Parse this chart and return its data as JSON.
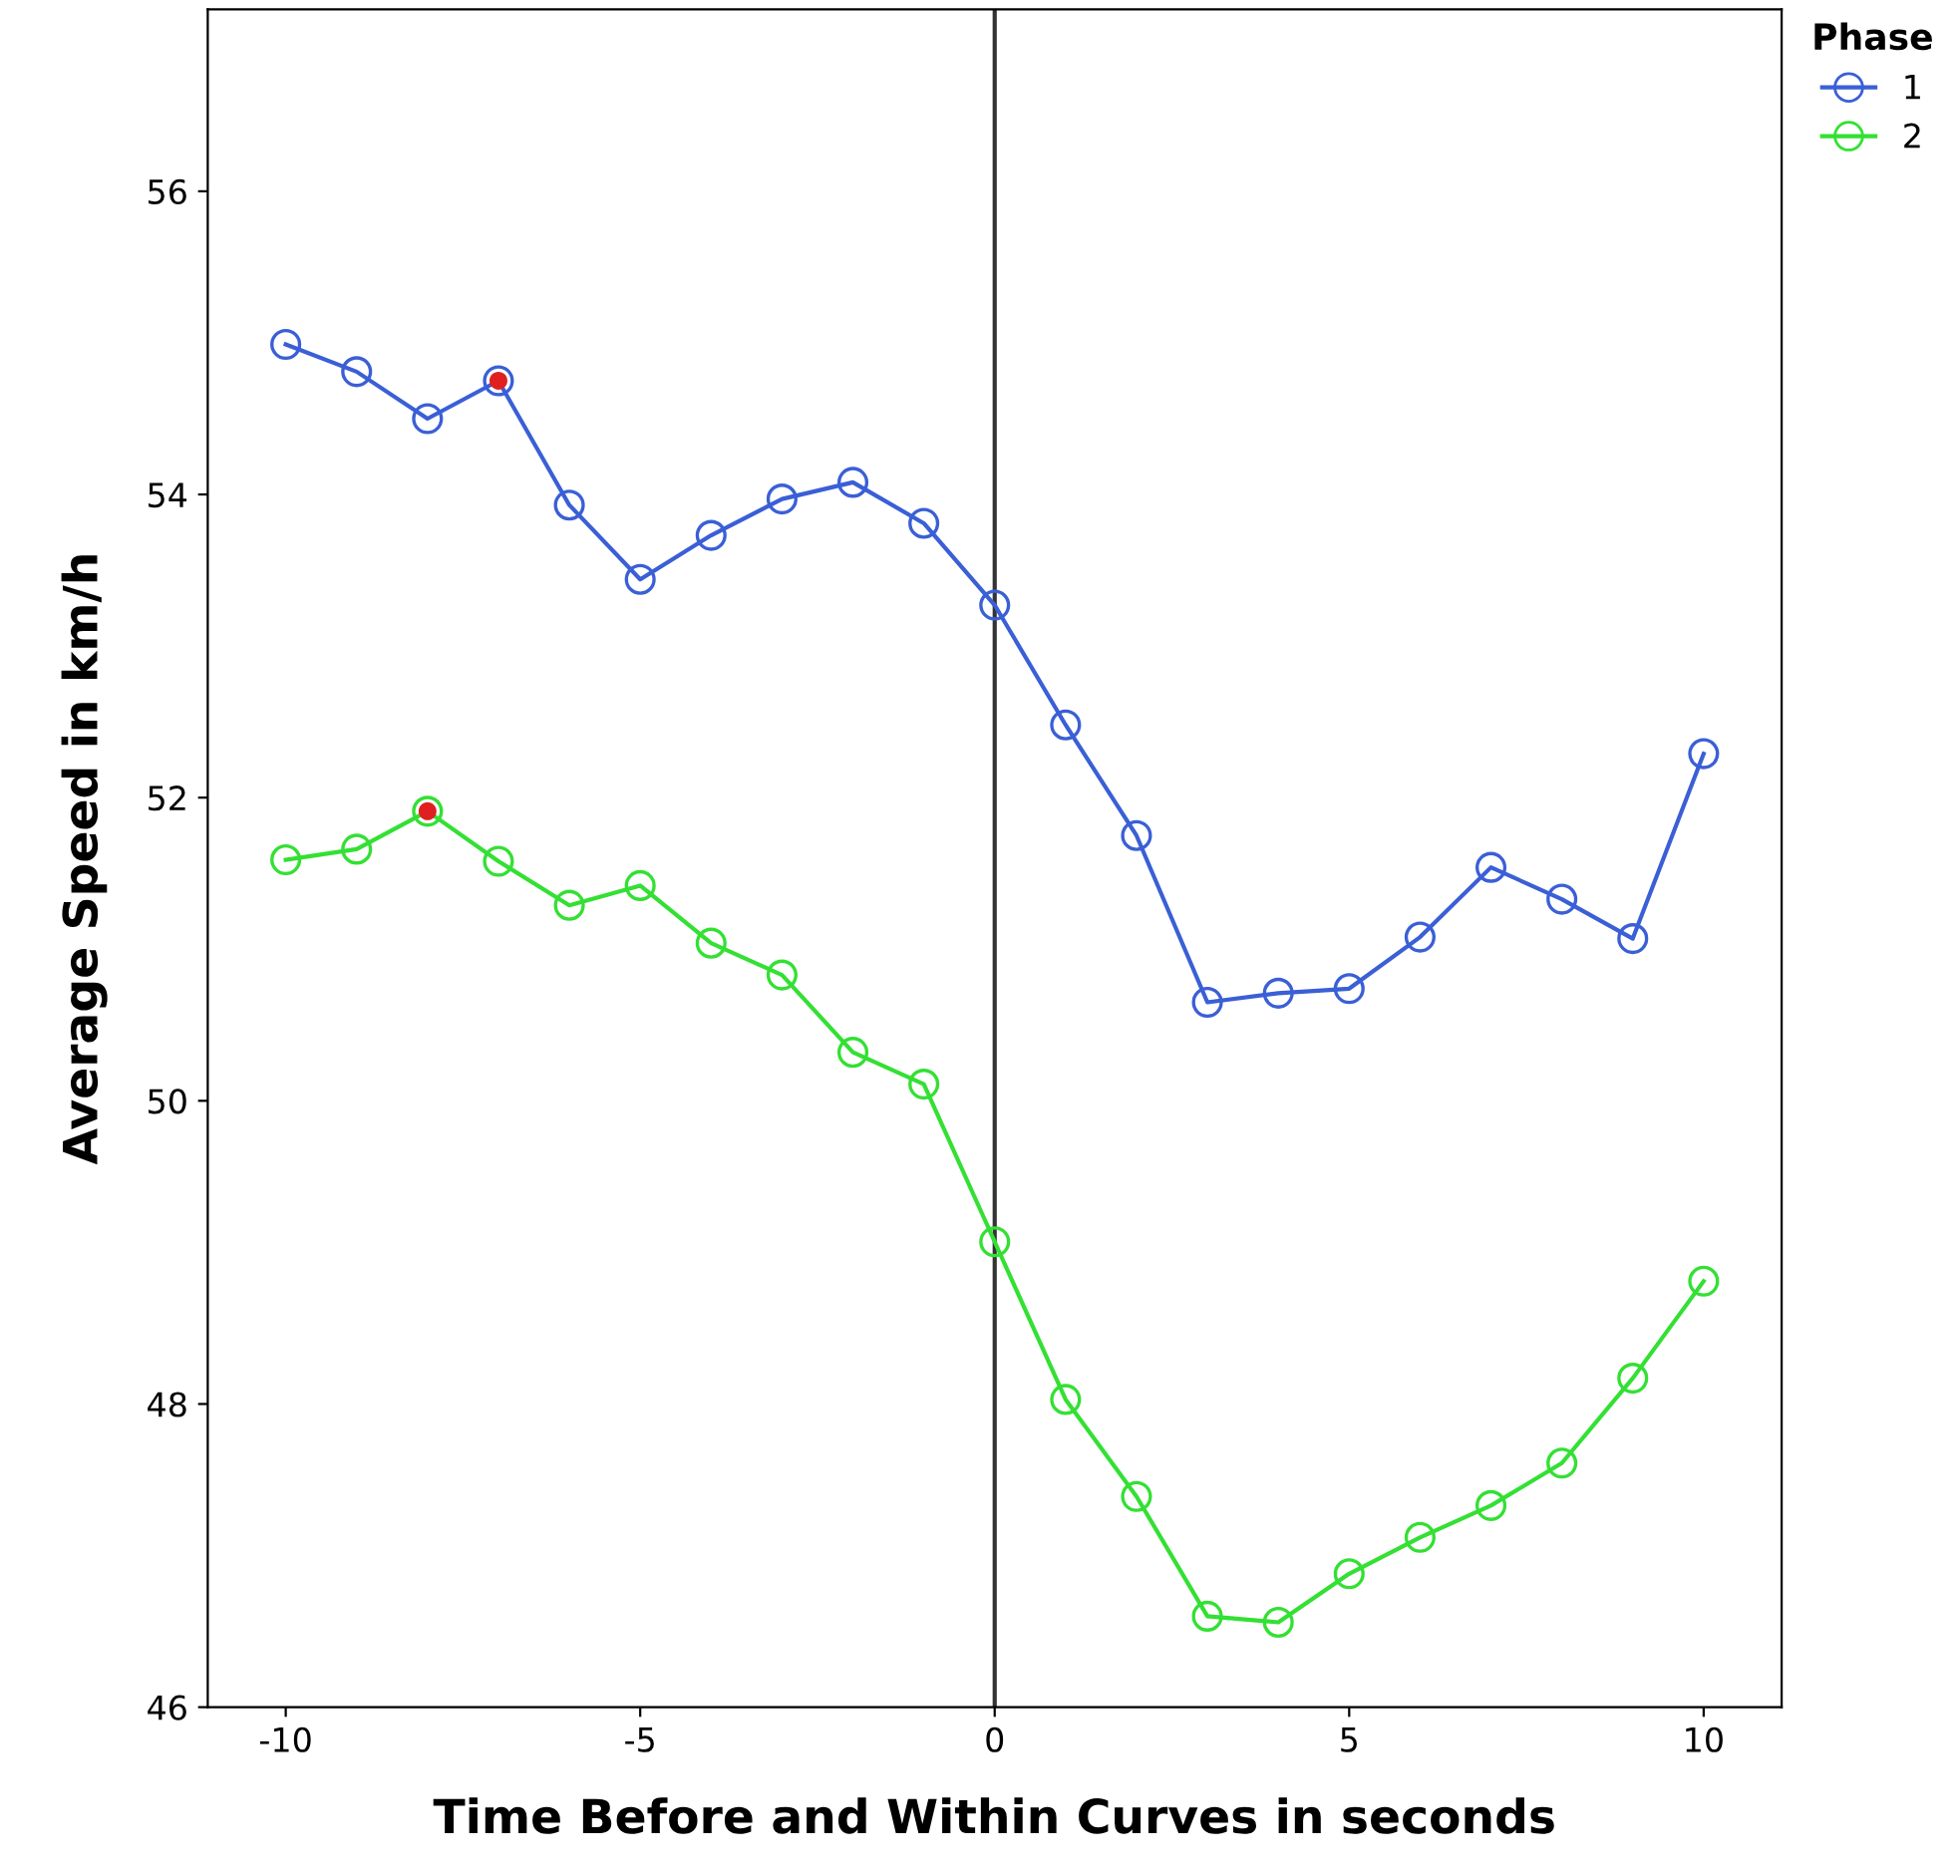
{
  "chart_data": {
    "type": "line",
    "xlabel": "Time Before and Within Curves in seconds",
    "ylabel": "Average Speed in km/h",
    "legend_title": "Phase",
    "legend": "top right",
    "marker": "circle",
    "line_style": "solid",
    "grid": false,
    "x": [
      -10,
      -9,
      -8,
      -7,
      -6,
      -5,
      -4,
      -3,
      -2,
      -1,
      0,
      1,
      2,
      3,
      4,
      5,
      6,
      7,
      8,
      9,
      10
    ],
    "xlim": [
      -11.1,
      11.1
    ],
    "xticks": [
      {
        "value": -10,
        "label": "-10"
      },
      {
        "value": -5,
        "label": "-5"
      },
      0,
      5,
      10
    ],
    "ylim": [
      46,
      57.2
    ],
    "yticks": [
      46,
      48,
      50,
      52,
      54,
      56
    ],
    "series": [
      {
        "name": "1",
        "color": "#3a5fd6",
        "values": [
          54.99,
          54.81,
          54.5,
          54.75,
          53.93,
          53.44,
          53.73,
          53.97,
          54.08,
          53.81,
          53.27,
          52.48,
          51.75,
          50.65,
          50.71,
          50.74,
          51.08,
          51.54,
          51.33,
          51.07,
          52.29
        ]
      },
      {
        "name": "2",
        "color": "#33e033",
        "values": [
          51.59,
          51.66,
          51.91,
          51.58,
          51.29,
          51.42,
          51.04,
          50.83,
          50.32,
          50.11,
          49.07,
          48.03,
          47.39,
          46.6,
          46.56,
          46.88,
          47.12,
          47.33,
          47.61,
          48.17,
          48.81
        ]
      },
      {
        "type": "scatter",
        "color": "#e02020",
        "x": [
          -7,
          -8
        ],
        "values": [
          54.75,
          51.91
        ]
      }
    ],
    "ref_lines": [
      {
        "axis": "x",
        "value": 0,
        "color": "#333333"
      }
    ]
  }
}
